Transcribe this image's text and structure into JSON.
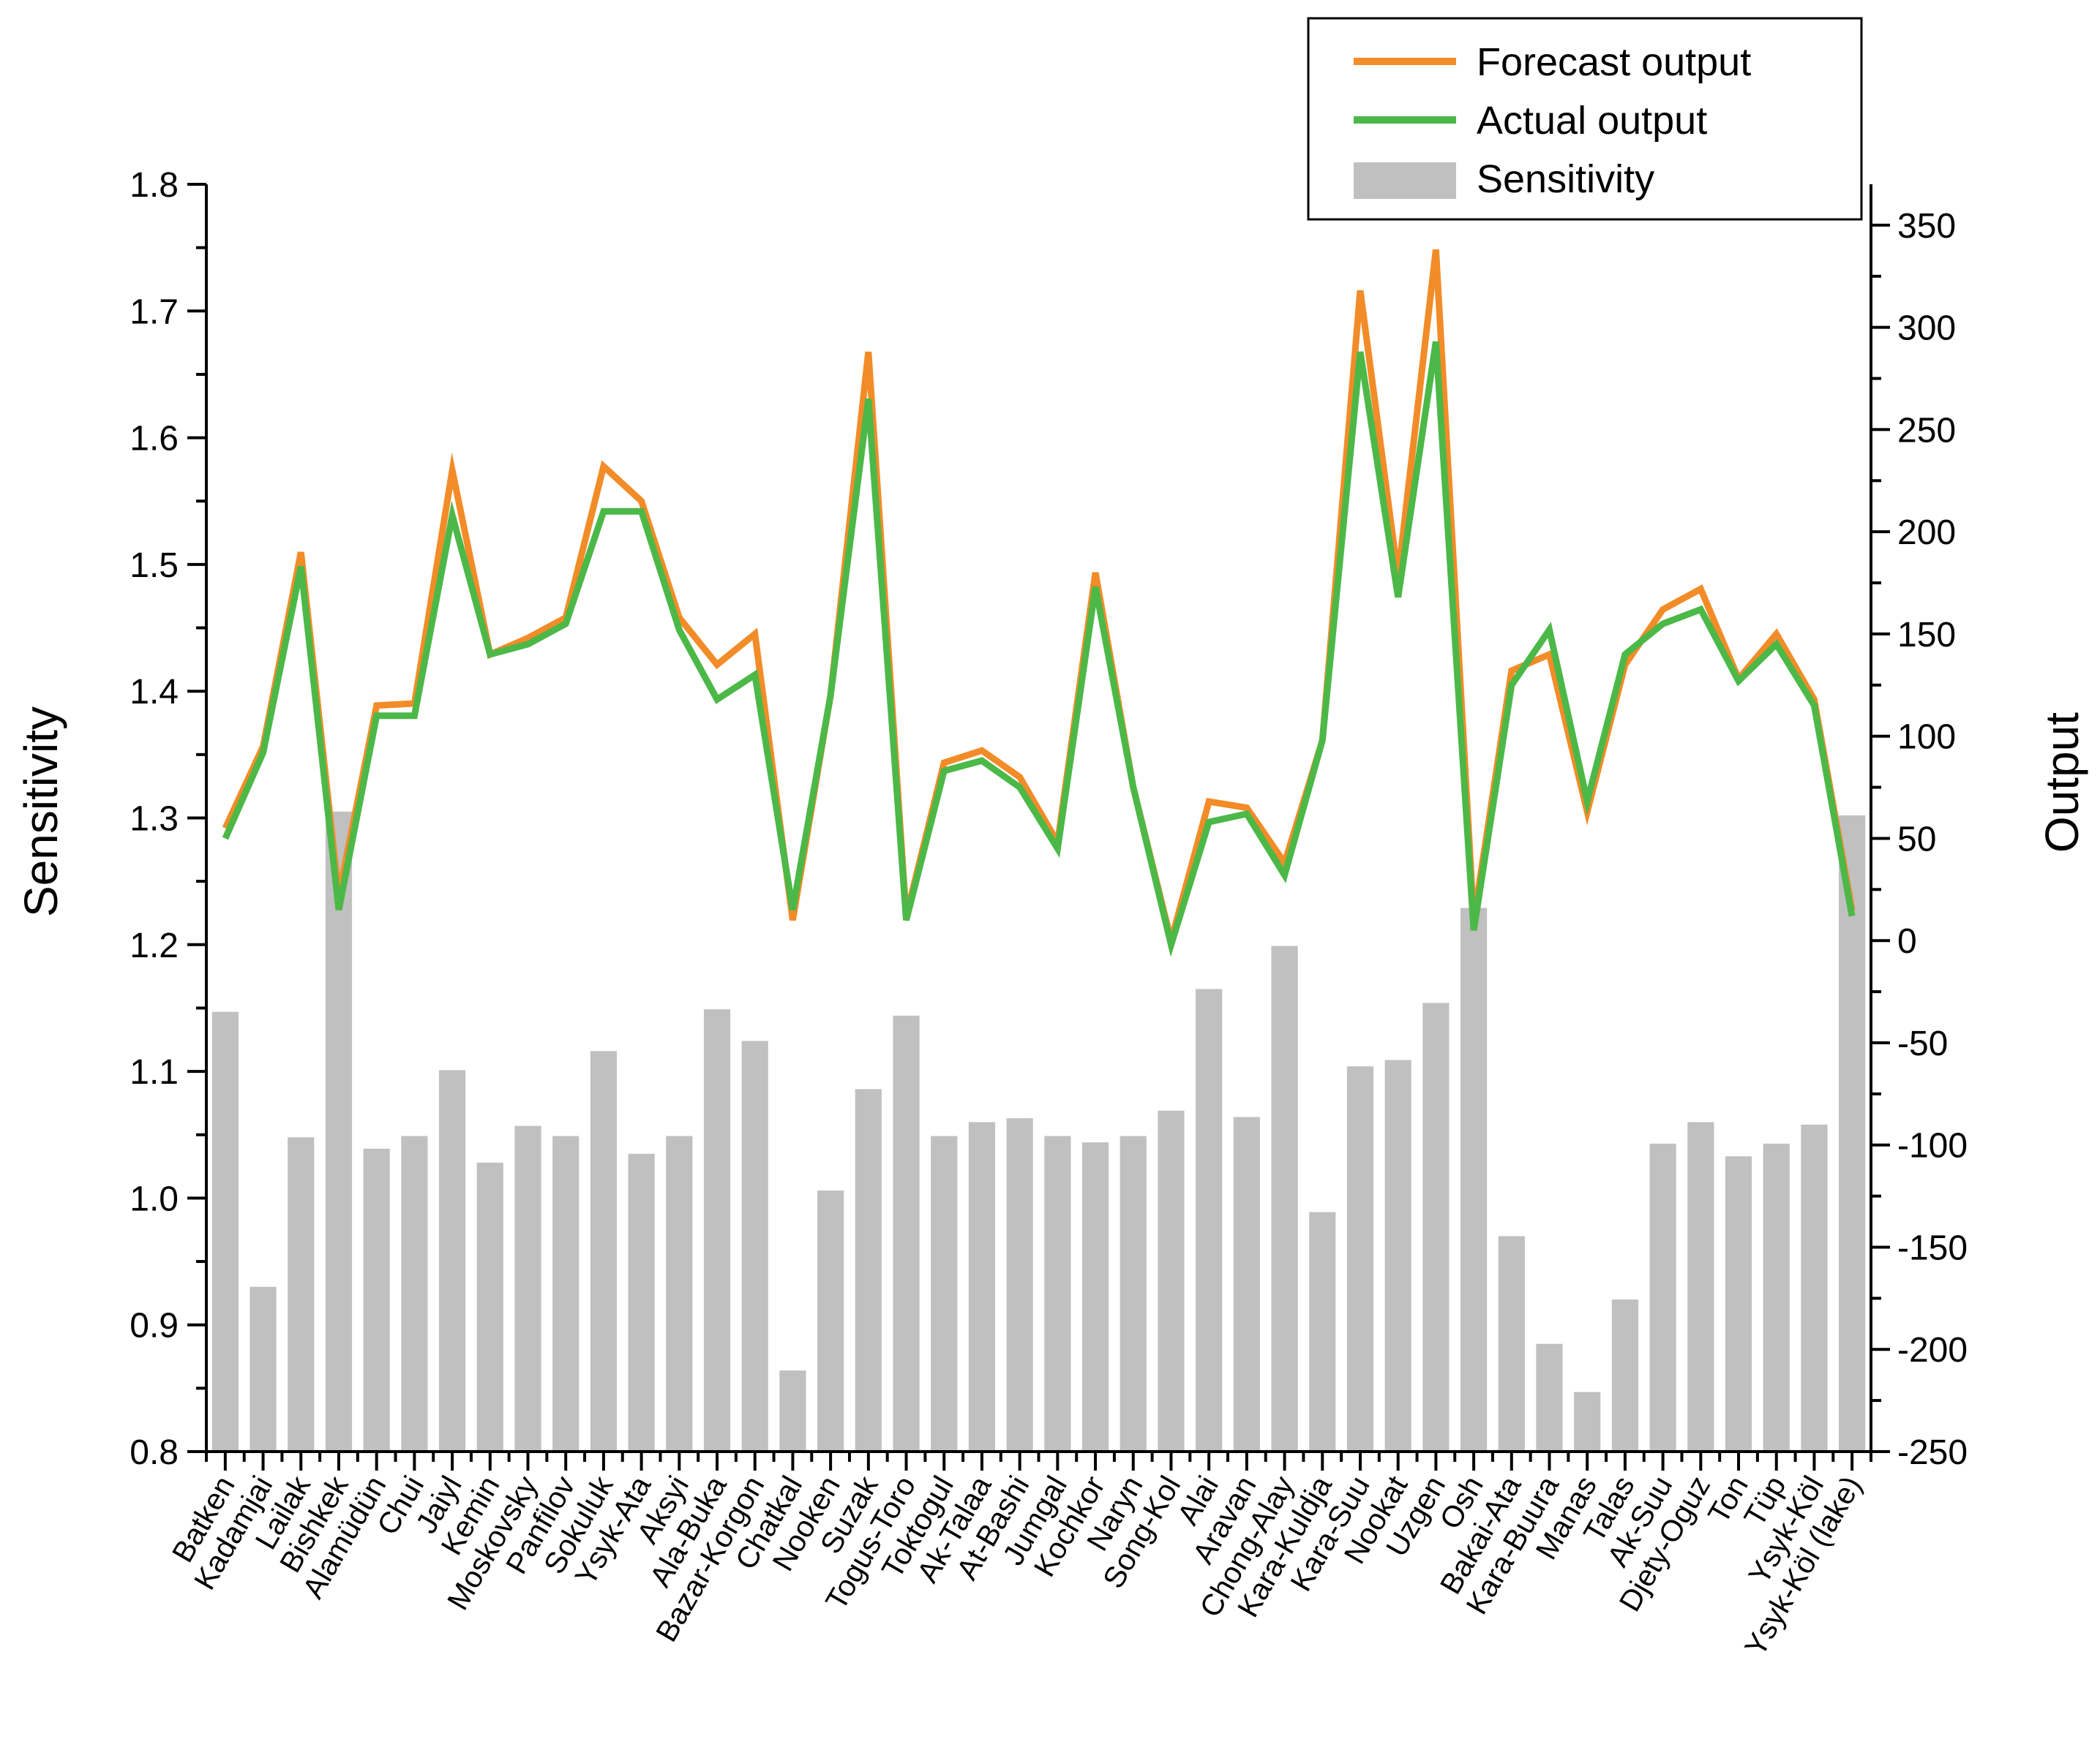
{
  "chart_data": {
    "type": "bar+line",
    "title": "",
    "xlabel": "",
    "ylabel_left": "Sensitivity",
    "ylabel_right": "Output",
    "ylim_left": [
      0.8,
      1.8
    ],
    "yticks_left": [
      "0.8",
      "0.9",
      "1.0",
      "1.1",
      "1.2",
      "1.3",
      "1.4",
      "1.5",
      "1.6",
      "1.7",
      "1.8"
    ],
    "ylim_right": [
      -250,
      370
    ],
    "yticks_right": [
      "-250",
      "-200",
      "-150",
      "-100",
      "-50",
      "0",
      "50",
      "100",
      "150",
      "200",
      "250",
      "300",
      "350"
    ],
    "legend_position": "top-right",
    "legend": [
      "Forecast output",
      "Actual output",
      "Sensitivity"
    ],
    "colors": {
      "forecast": "#f28c28",
      "actual": "#4cb848",
      "sensitivity": "#c0c0c0",
      "axis": "#000000"
    },
    "categories": [
      "Batken",
      "Kadamjai",
      "Lailak",
      "Bishkek",
      "Alamüdün",
      "Chui",
      "Jaiyl",
      "Kemin",
      "Moskovsky",
      "Panfilov",
      "Sokuluk",
      "Ysyk-Ata",
      "Aksyi",
      "Ala-Buka",
      "Bazar-Korgon",
      "Chatkal",
      "Nooken",
      "Suzak",
      "Togus-Toro",
      "Toktogul",
      "Ak-Talaa",
      "At-Bashi",
      "Jumgal",
      "Kochkor",
      "Naryn",
      "Song-Kol",
      "Alai",
      "Aravan",
      "Chong-Alay",
      "Kara-Kuldja",
      "Kara-Suu",
      "Nookat",
      "Uzgen",
      "Osh",
      "Bakai-Ata",
      "Kara-Buura",
      "Manas",
      "Talas",
      "Ak-Suu",
      "Djety-Oguz",
      "Ton",
      "Tüp",
      "Ysyk-Köl",
      "Ysyk-Köl (lake)"
    ],
    "series": [
      {
        "name": "Sensitivity",
        "type": "bar",
        "axis": "left",
        "values": [
          1.147,
          0.93,
          1.048,
          1.305,
          1.039,
          1.049,
          1.101,
          1.028,
          1.057,
          1.049,
          1.116,
          1.035,
          1.049,
          1.149,
          1.124,
          0.864,
          1.006,
          1.086,
          1.144,
          1.049,
          1.06,
          1.063,
          1.049,
          1.044,
          1.049,
          1.069,
          1.165,
          1.064,
          1.199,
          0.989,
          1.104,
          1.109,
          1.154,
          1.229,
          0.97,
          0.885,
          0.847,
          0.92,
          1.043,
          1.06,
          1.033,
          1.043,
          1.058,
          1.302
        ]
      },
      {
        "name": "Forecast output",
        "type": "line",
        "axis": "right",
        "values": [
          55,
          95,
          190,
          22,
          115,
          116,
          230,
          140,
          148,
          158,
          232,
          215,
          158,
          135,
          150,
          10,
          120,
          288,
          12,
          87,
          93,
          80,
          48,
          180,
          75,
          0,
          68,
          65,
          38,
          98,
          318,
          178,
          338,
          10,
          132,
          140,
          63,
          135,
          162,
          172,
          128,
          150,
          118,
          15
        ]
      },
      {
        "name": "Actual output",
        "type": "line",
        "axis": "right",
        "values": [
          50,
          92,
          183,
          15,
          110,
          110,
          208,
          140,
          145,
          155,
          210,
          210,
          152,
          118,
          130,
          15,
          120,
          265,
          10,
          83,
          88,
          75,
          45,
          173,
          75,
          -2,
          58,
          62,
          32,
          98,
          288,
          168,
          293,
          5,
          125,
          152,
          68,
          140,
          155,
          162,
          127,
          145,
          115,
          12
        ]
      }
    ]
  }
}
